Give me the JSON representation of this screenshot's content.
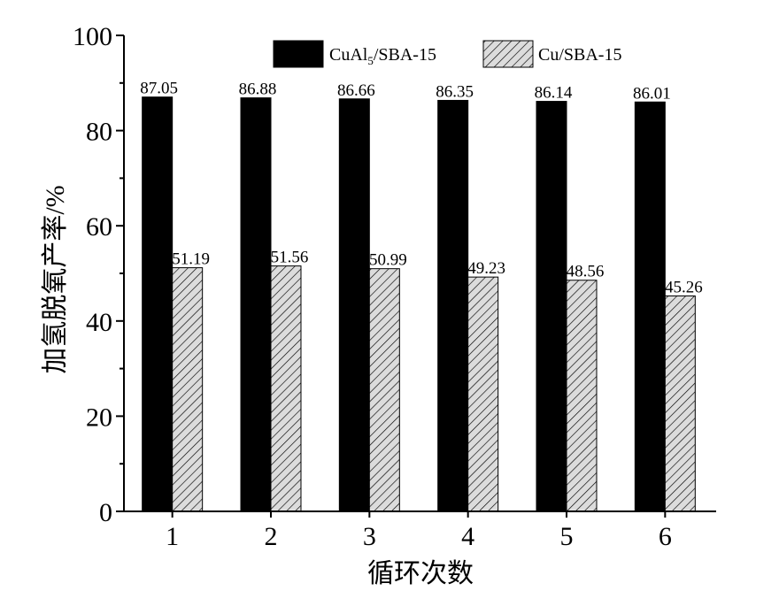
{
  "chart_data": {
    "type": "bar",
    "title": "",
    "xlabel": "循环次数",
    "ylabel": "加氢脱氧产率/%",
    "categories": [
      "1",
      "2",
      "3",
      "4",
      "5",
      "6"
    ],
    "ylim": [
      0,
      100
    ],
    "yticks": [
      "0",
      "20",
      "40",
      "60",
      "80",
      "100"
    ],
    "grid": false,
    "legend_position": "top-right",
    "series": [
      {
        "name": "CuAl5/SBA-15",
        "legend_label": {
          "base": "CuAl",
          "sub": "5",
          "rest": "/SBA-15"
        },
        "values": [
          87.05,
          86.88,
          86.66,
          86.35,
          86.14,
          86.01
        ],
        "labels": [
          "87.05",
          "86.88",
          "86.66",
          "86.35",
          "86.14",
          "86.01"
        ],
        "fill": "#000000",
        "pattern": "solid"
      },
      {
        "name": "Cu/SBA-15",
        "legend_label": {
          "base": "Cu/SBA-15",
          "sub": "",
          "rest": ""
        },
        "values": [
          51.19,
          51.56,
          50.99,
          49.23,
          48.56,
          45.26
        ],
        "labels": [
          "51.19",
          "51.56",
          "50.99",
          "49.23",
          "48.56",
          "45.26"
        ],
        "fill": "#d9d9d9",
        "pattern": "diagonal-hatch"
      }
    ]
  }
}
